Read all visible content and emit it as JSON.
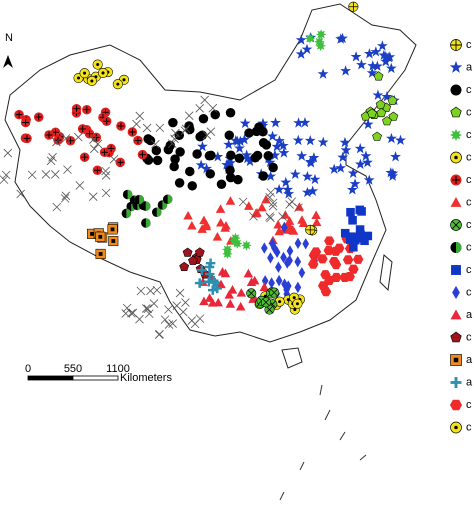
{
  "north_label": "N",
  "scale_bar": {
    "ticks": [
      0,
      550,
      1100
    ],
    "unit": "Kilometers"
  },
  "legend": {
    "items": [
      {
        "label": "c",
        "symbol": "circlecross",
        "color": "#f5e31a"
      },
      {
        "label": "a",
        "symbol": "star",
        "color": "#1a3fc4"
      },
      {
        "label": "c",
        "symbol": "circle",
        "color": "#000000"
      },
      {
        "label": "c",
        "symbol": "pentagon",
        "color": "#7ed321"
      },
      {
        "label": "c",
        "symbol": "burst",
        "color": "#3fbf3f"
      },
      {
        "label": "c",
        "symbol": "dotcircle",
        "color": "#f5e31a"
      },
      {
        "label": "c",
        "symbol": "pluscircle",
        "color": "#e02020"
      },
      {
        "label": "c",
        "symbol": "triangle",
        "color": "#f03030"
      },
      {
        "label": "c",
        "symbol": "xcircle",
        "color": "#4cbf2f"
      },
      {
        "label": "c",
        "symbol": "halfcircle",
        "color": "#3aaa35"
      },
      {
        "label": "c",
        "symbol": "square",
        "color": "#1036c8"
      },
      {
        "label": "c",
        "symbol": "diamond",
        "color": "#2a3fd6"
      },
      {
        "label": "a",
        "symbol": "triangle",
        "color": "#e8283a"
      },
      {
        "label": "c",
        "symbol": "pentagon",
        "color": "#a0141e"
      },
      {
        "label": "a",
        "symbol": "sqdot",
        "color": "#f08a1e"
      },
      {
        "label": "a",
        "symbol": "plus",
        "color": "#2a8fb0"
      },
      {
        "label": "c",
        "symbol": "hexagon",
        "color": "#f02a2a"
      },
      {
        "label": "c",
        "symbol": "dotcircle",
        "color": "#f5e31a"
      }
    ]
  }
}
